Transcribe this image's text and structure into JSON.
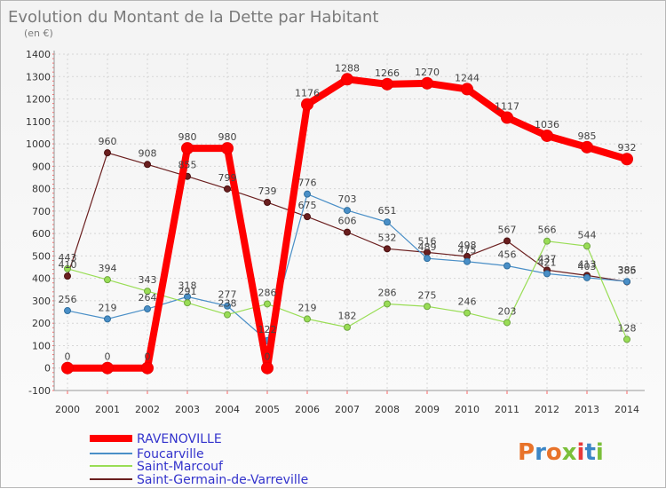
{
  "header": {
    "title": "Evolution du Montant de la Dette par Habitant",
    "unit": "(en €)"
  },
  "logo": {
    "text": "Proxiti"
  },
  "chart_data": {
    "type": "line",
    "title": "Evolution du Montant de la Dette par Habitant",
    "subtitle": "(en €)",
    "xlabel": "",
    "ylabel": "",
    "x": [
      2000,
      2001,
      2002,
      2003,
      2004,
      2005,
      2006,
      2007,
      2008,
      2009,
      2010,
      2011,
      2012,
      2013,
      2014
    ],
    "ylim": [
      -100,
      1400
    ],
    "yticks": [
      -100,
      0,
      100,
      200,
      300,
      400,
      500,
      600,
      700,
      800,
      900,
      1000,
      1100,
      1200,
      1300,
      1400
    ],
    "grid": true,
    "legend_position": "bottom-left",
    "series": [
      {
        "name": "RAVENOVILLE",
        "color": "#ff0000",
        "values": [
          0,
          0,
          0,
          980,
          980,
          0,
          1176,
          1288,
          1266,
          1270,
          1244,
          1117,
          1036,
          985,
          932
        ]
      },
      {
        "name": "Foucarville",
        "color": "#4a8fc7",
        "values": [
          256,
          219,
          264,
          318,
          277,
          122,
          776,
          703,
          651,
          489,
          475,
          456,
          421,
          403,
          386
        ]
      },
      {
        "name": "Saint-Marcouf",
        "color": "#99dd55",
        "values": [
          443,
          394,
          343,
          291,
          238,
          286,
          219,
          182,
          286,
          275,
          246,
          203,
          566,
          544,
          128
        ]
      },
      {
        "name": "Saint-Germain-de-Varreville",
        "color": "#6b1f1f",
        "values": [
          410,
          960,
          908,
          855,
          799,
          739,
          675,
          606,
          532,
          516,
          498,
          567,
          437,
          413,
          385
        ]
      }
    ]
  }
}
